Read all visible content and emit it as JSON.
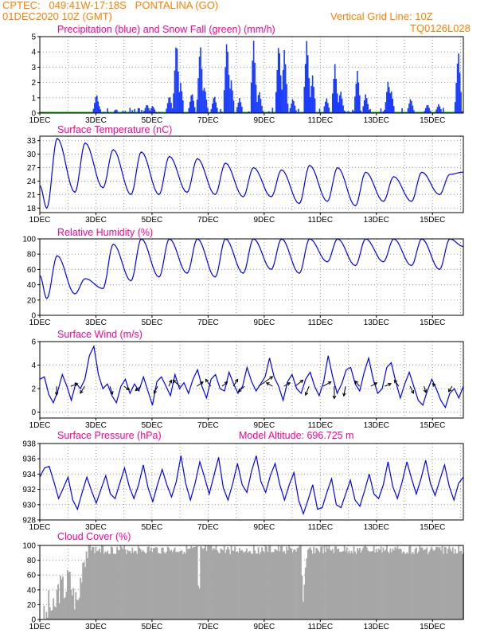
{
  "header": {
    "line1": "CPTEC:   049:41W-17:18S   PONTALINA (GO)",
    "line2_left": "01DEC2020 10Z (GMT)",
    "line2_right": "Vertical Grid Line: 10Z",
    "line3_right": "TQ0126L028"
  },
  "colors": {
    "header_text": "#ff8000",
    "title_text": "#ff0090",
    "series_line": "#0000ff",
    "precip_bars": "#1a3cff",
    "snow_line": "#00b000",
    "cloud_fill": "#a6a6a6",
    "grid": "#9a9a9a"
  },
  "chart_data": [
    {
      "id": "precip",
      "type": "bar",
      "title": "Precipitation (blue) and Snow Fall (green) (mm/h)",
      "right_note": "",
      "x_ticks": [
        "1DEC",
        "3DEC",
        "5DEC",
        "7DEC",
        "9DEC",
        "11DEC",
        "13DEC",
        "15DEC"
      ],
      "x_range_days": [
        1,
        16.1
      ],
      "ylim": [
        0,
        5
      ],
      "y_ticks": [
        0,
        1,
        2,
        3,
        4,
        5
      ],
      "grid": true,
      "snow_values": "all zero",
      "spikes": [
        {
          "day": 3.0,
          "value": 1.3
        },
        {
          "day": 3.05,
          "value": 0.7
        },
        {
          "day": 4.8,
          "value": 0.6
        },
        {
          "day": 5.0,
          "value": 0.5
        },
        {
          "day": 5.6,
          "value": 1.2
        },
        {
          "day": 5.85,
          "value": 5.0
        },
        {
          "day": 6.0,
          "value": 2.0
        },
        {
          "day": 6.4,
          "value": 1.4
        },
        {
          "day": 6.7,
          "value": 4.7
        },
        {
          "day": 6.85,
          "value": 1.8
        },
        {
          "day": 7.2,
          "value": 1.2
        },
        {
          "day": 7.65,
          "value": 5.0
        },
        {
          "day": 7.8,
          "value": 2.2
        },
        {
          "day": 8.1,
          "value": 1.0
        },
        {
          "day": 8.6,
          "value": 4.8
        },
        {
          "day": 8.8,
          "value": 1.5
        },
        {
          "day": 9.5,
          "value": 4.8
        },
        {
          "day": 9.7,
          "value": 4.3
        },
        {
          "day": 10.0,
          "value": 1.0
        },
        {
          "day": 10.5,
          "value": 5.0
        },
        {
          "day": 10.7,
          "value": 2.5
        },
        {
          "day": 11.2,
          "value": 1.0
        },
        {
          "day": 11.5,
          "value": 3.2
        },
        {
          "day": 11.7,
          "value": 1.5
        },
        {
          "day": 12.3,
          "value": 2.8
        },
        {
          "day": 12.6,
          "value": 1.3
        },
        {
          "day": 13.4,
          "value": 2.2
        },
        {
          "day": 13.5,
          "value": 1.6
        },
        {
          "day": 14.2,
          "value": 1.0
        },
        {
          "day": 14.8,
          "value": 0.6
        },
        {
          "day": 15.2,
          "value": 0.6
        },
        {
          "day": 15.9,
          "value": 4.2
        }
      ]
    },
    {
      "id": "temp",
      "type": "line",
      "title": "Surface Temperature (nC)",
      "right_note": "",
      "x_ticks": [
        "1DEC",
        "3DEC",
        "5DEC",
        "7DEC",
        "9DEC",
        "11DEC",
        "13DEC",
        "15DEC"
      ],
      "ylim": [
        17,
        34
      ],
      "y_ticks": [
        18,
        21,
        24,
        27,
        30,
        33
      ],
      "grid": true,
      "peaks": [
        33.5,
        32.5,
        31.0,
        30.5,
        29.5,
        29.0,
        28.0,
        27.0,
        26.5,
        27.5,
        27.0,
        26.0,
        25.0,
        26.0,
        25.5
      ],
      "troughs": [
        18.0,
        21.5,
        22.5,
        21.0,
        21.0,
        21.5,
        21.0,
        20.5,
        20.5,
        19.0,
        19.5,
        18.5,
        19.5,
        19.5,
        21.0
      ],
      "start": 23.0,
      "end": 26.0
    },
    {
      "id": "rh",
      "type": "line",
      "title": "Relative Humidity (%)",
      "right_note": "",
      "x_ticks": [
        "1DEC",
        "3DEC",
        "5DEC",
        "7DEC",
        "9DEC",
        "11DEC",
        "13DEC",
        "15DEC"
      ],
      "ylim": [
        0,
        100
      ],
      "y_ticks": [
        0,
        20,
        40,
        60,
        80,
        100
      ],
      "grid": true,
      "peaks": [
        78,
        48,
        93,
        100,
        100,
        100,
        100,
        100,
        100,
        100,
        100,
        100,
        100,
        100,
        100
      ],
      "troughs": [
        22,
        28,
        35,
        45,
        50,
        55,
        50,
        55,
        60,
        55,
        70,
        65,
        70,
        65,
        60
      ],
      "start": 52,
      "end": 90
    },
    {
      "id": "wind",
      "type": "line",
      "title": "Surface Wind (m/s)",
      "right_note": "",
      "x_ticks": [
        "1DEC",
        "3DEC",
        "5DEC",
        "7DEC",
        "9DEC",
        "11DEC",
        "13DEC",
        "15DEC"
      ],
      "ylim": [
        -0.5,
        6
      ],
      "y_ticks": [
        0,
        2,
        4,
        6
      ],
      "grid": true,
      "values": [
        2.8,
        3.0,
        1.5,
        0.8,
        1.8,
        3.2,
        2.2,
        1.0,
        2.5,
        2.0,
        2.8,
        4.8,
        5.6,
        3.2,
        2.0,
        2.4,
        1.4,
        0.8,
        2.2,
        2.8,
        1.6,
        2.4,
        1.8,
        3.0,
        1.8,
        0.6,
        2.6,
        3.0,
        2.2,
        1.4,
        3.2,
        2.0,
        2.5,
        1.6,
        2.8,
        3.6,
        2.2,
        1.2,
        2.8,
        3.2,
        2.0,
        1.8,
        3.4,
        2.4,
        1.6,
        2.2,
        3.8,
        2.6,
        1.8,
        2.4,
        3.0,
        4.6,
        3.0,
        2.2,
        1.0,
        2.6,
        3.2,
        2.0,
        1.6,
        2.8,
        3.4,
        2.2,
        1.4,
        2.6,
        4.8,
        3.0,
        1.6,
        2.4,
        3.6,
        3.8,
        2.4,
        1.8,
        3.4,
        4.6,
        2.8,
        1.6,
        2.0,
        3.8,
        4.2,
        2.6,
        1.2,
        2.4,
        3.4,
        2.2,
        1.0,
        0.6,
        1.8,
        2.8,
        2.0,
        1.0,
        0.4,
        1.6,
        2.0,
        1.2,
        2.2
      ],
      "arrows": [
        {
          "day": 1.6,
          "u": 0.0,
          "v": -1.0
        },
        {
          "day": 2.1,
          "u": 0.8,
          "v": 0.3
        },
        {
          "day": 2.6,
          "u": -0.5,
          "v": -0.8
        },
        {
          "day": 3.5,
          "u": 0.3,
          "v": -0.9
        },
        {
          "day": 4.0,
          "u": 0.6,
          "v": -0.4
        },
        {
          "day": 4.6,
          "u": -0.6,
          "v": -0.5
        },
        {
          "day": 5.2,
          "u": -0.4,
          "v": -0.8
        },
        {
          "day": 5.6,
          "u": 0.3,
          "v": 0.7
        },
        {
          "day": 6.0,
          "u": -0.8,
          "v": 0.7
        },
        {
          "day": 6.6,
          "u": 0.7,
          "v": 0.5
        },
        {
          "day": 7.1,
          "u": -0.6,
          "v": 0.8
        },
        {
          "day": 7.5,
          "u": 0.6,
          "v": 0.5
        },
        {
          "day": 7.9,
          "u": 0.5,
          "v": 0.8
        },
        {
          "day": 8.3,
          "u": -0.7,
          "v": -0.6
        },
        {
          "day": 8.8,
          "u": 1.6,
          "v": 1.1
        },
        {
          "day": 9.3,
          "u": -0.7,
          "v": 0.4
        },
        {
          "day": 9.7,
          "u": 0.7,
          "v": 0.4
        },
        {
          "day": 10.1,
          "u": 0.9,
          "v": 0.7
        },
        {
          "day": 10.6,
          "u": -0.4,
          "v": -1.0
        },
        {
          "day": 11.1,
          "u": 0.9,
          "v": 0.5
        },
        {
          "day": 11.5,
          "u": 0.0,
          "v": -1.4
        },
        {
          "day": 11.9,
          "u": -0.2,
          "v": -1.1
        },
        {
          "day": 12.4,
          "u": -0.5,
          "v": 0.6
        },
        {
          "day": 12.8,
          "u": 0.7,
          "v": 0.4
        },
        {
          "day": 13.3,
          "u": 0.7,
          "v": 0.3
        },
        {
          "day": 13.8,
          "u": -0.5,
          "v": 0.7
        },
        {
          "day": 14.2,
          "u": 0.4,
          "v": -0.8
        },
        {
          "day": 14.7,
          "u": 0.2,
          "v": -0.7
        },
        {
          "day": 15.1,
          "u": -0.3,
          "v": 0.3
        },
        {
          "day": 15.7,
          "u": -0.4,
          "v": -0.6
        }
      ]
    },
    {
      "id": "pres",
      "type": "line",
      "title": "Surface Pressure (hPa)",
      "right_note": "Model Altitude: 696.725  m",
      "x_ticks": [
        "1DEC",
        "3DEC",
        "5DEC",
        "7DEC",
        "9DEC",
        "11DEC",
        "13DEC",
        "15DEC"
      ],
      "ylim": [
        928,
        938
      ],
      "y_ticks": [
        928,
        930,
        932,
        934,
        936,
        938
      ],
      "grid": true,
      "values": [
        933.6,
        934.8,
        935.0,
        933.0,
        930.8,
        932.2,
        933.6,
        930.6,
        929.4,
        931.6,
        933.6,
        931.8,
        930.2,
        932.0,
        933.8,
        931.4,
        930.8,
        932.8,
        934.8,
        932.4,
        930.8,
        932.6,
        935.2,
        932.2,
        930.4,
        932.6,
        934.6,
        932.6,
        931.0,
        933.0,
        936.4,
        932.8,
        930.6,
        932.8,
        935.6,
        933.6,
        931.4,
        933.8,
        936.2,
        932.2,
        930.6,
        932.8,
        935.4,
        932.6,
        931.6,
        934.4,
        936.4,
        933.0,
        931.6,
        933.8,
        935.4,
        932.6,
        930.6,
        932.6,
        934.2,
        930.6,
        928.8,
        930.6,
        932.6,
        929.4,
        929.6,
        931.6,
        933.4,
        930.0,
        929.6,
        931.4,
        933.2,
        930.6,
        929.8,
        931.8,
        934.0,
        931.4,
        930.8,
        932.6,
        935.6,
        932.4,
        930.8,
        933.0,
        935.6,
        933.4,
        931.4,
        933.4,
        935.8,
        932.8,
        931.2,
        933.2,
        935.2,
        932.4,
        930.6,
        932.8,
        933.6
      ],
      "start_label": ""
    },
    {
      "id": "cloud",
      "type": "area",
      "title": "Cloud Cover (%)",
      "right_note": "",
      "x_ticks": [
        "1DEC",
        "3DEC",
        "5DEC",
        "7DEC",
        "9DEC",
        "11DEC",
        "13DEC",
        "15DEC"
      ],
      "ylim": [
        0,
        100
      ],
      "y_ticks": [
        0,
        20,
        40,
        60,
        80,
        100
      ],
      "grid": true,
      "description_values": [
        {
          "day": 1.0,
          "value": 0
        },
        {
          "day": 1.2,
          "value": 2
        },
        {
          "day": 1.3,
          "value": 22
        },
        {
          "day": 1.5,
          "value": 8
        },
        {
          "day": 1.6,
          "value": 38
        },
        {
          "day": 1.75,
          "value": 45
        },
        {
          "day": 1.9,
          "value": 40
        },
        {
          "day": 2.0,
          "value": 60
        },
        {
          "day": 2.2,
          "value": 30
        },
        {
          "day": 2.35,
          "value": 25
        },
        {
          "day": 2.5,
          "value": 80
        },
        {
          "day": 2.65,
          "value": 95
        },
        {
          "day": 2.8,
          "value": 100
        },
        {
          "day": 6.6,
          "value": 100
        },
        {
          "day": 6.65,
          "value": 3
        },
        {
          "day": 6.7,
          "value": 100
        },
        {
          "day": 10.3,
          "value": 100
        },
        {
          "day": 10.35,
          "value": 15
        },
        {
          "day": 10.45,
          "value": 70
        },
        {
          "day": 10.55,
          "value": 100
        },
        {
          "day": 16.1,
          "value": 100
        }
      ]
    }
  ]
}
